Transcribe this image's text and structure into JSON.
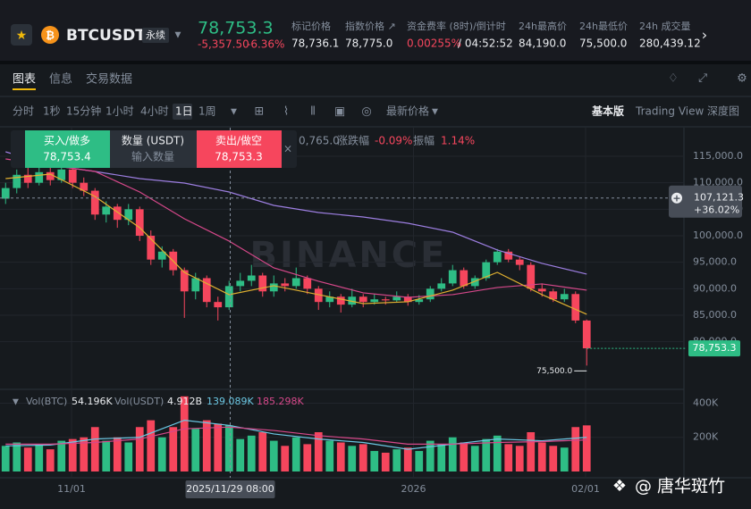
{
  "header": {
    "symbol": "BTCUSDT",
    "contract_type": "永续",
    "last_price": "78,753.3",
    "change": "-5,357.50",
    "change_pct": "-6.36%",
    "stats": [
      {
        "label": "标记价格",
        "value": "78,736.1"
      },
      {
        "label": "指数价格 ↗",
        "value": "78,775.0"
      },
      {
        "label": "资金费率 (8时)/倒计时",
        "value": "0.00255%",
        "value2": "/ 04:52:52"
      },
      {
        "label": "24h最高价",
        "value": "84,190.0"
      },
      {
        "label": "24h最低价",
        "value": "75,500.0"
      },
      {
        "label": "24h 成交量",
        "value": "280,439.12"
      }
    ]
  },
  "tabs": [
    "图表",
    "信息",
    "交易数据"
  ],
  "toolbar": {
    "intervals": [
      "分时",
      "1秒",
      "15分钟",
      "1小时",
      "4小时",
      "1日",
      "1周"
    ],
    "price_type": "最新价格",
    "views": [
      "基本版",
      "Trading View",
      "深度图"
    ]
  },
  "order_panel": {
    "buy_label": "买入/做多",
    "buy_price": "78,753.4",
    "qty_label": "数量 (USDT)",
    "qty_placeholder": "输入数量",
    "sell_label": "卖出/做空",
    "sell_price": "78,753.3"
  },
  "ohlc_row": {
    "fragment": "0,765.0",
    "change_label": "涨跌幅",
    "change": "-0.09%",
    "amplitude_label": "振幅",
    "amplitude": "1.14%"
  },
  "volume_row": {
    "vol_btc_label": "Vol(BTC)",
    "vol_btc": "54.196K",
    "vol_usdt_label": "Vol(USDT)",
    "vol_usdt": "4.912B",
    "ma1": "139.089K",
    "ma2": "185.298K"
  },
  "watermark": "BINANCE",
  "footer_watermark": "@ 唐华斑竹",
  "chart_data": {
    "type": "candlestick",
    "up_color": "#2ebd85",
    "down_color": "#f6465d",
    "candles": [
      [
        107000,
        110000,
        106000,
        109000
      ],
      [
        109000,
        112500,
        108000,
        111500
      ],
      [
        111500,
        113000,
        109000,
        110000
      ],
      [
        110000,
        113500,
        109500,
        112000
      ],
      [
        112000,
        113000,
        109500,
        110500
      ],
      [
        110500,
        113800,
        110000,
        112500
      ],
      [
        112500,
        113500,
        109000,
        110000
      ],
      [
        110000,
        111000,
        107500,
        108500
      ],
      [
        108500,
        109000,
        103000,
        104000
      ],
      [
        104000,
        106500,
        102500,
        105500
      ],
      [
        105500,
        106000,
        101500,
        103000
      ],
      [
        103000,
        106000,
        102000,
        105000
      ],
      [
        105000,
        105500,
        99000,
        100000
      ],
      [
        100000,
        101000,
        94500,
        95500
      ],
      [
        95500,
        98000,
        94000,
        97000
      ],
      [
        97000,
        97500,
        92500,
        93500
      ],
      [
        93500,
        94000,
        84500,
        89500
      ],
      [
        89500,
        93000,
        88000,
        92000
      ],
      [
        92000,
        92500,
        86500,
        87500
      ],
      [
        87500,
        88500,
        84000,
        86500
      ],
      [
        86500,
        91500,
        86000,
        90500
      ],
      [
        90500,
        93000,
        89500,
        91500
      ],
      [
        91500,
        94500,
        90500,
        92500
      ],
      [
        92500,
        93000,
        88500,
        89500
      ],
      [
        89500,
        92500,
        88500,
        91000
      ],
      [
        91000,
        92000,
        89500,
        90500
      ],
      [
        90500,
        94000,
        90000,
        92000
      ],
      [
        92000,
        92500,
        89000,
        90000
      ],
      [
        90000,
        90500,
        86000,
        87500
      ],
      [
        87500,
        89500,
        86500,
        88500
      ],
      [
        88500,
        89000,
        85500,
        87000
      ],
      [
        87000,
        90000,
        86500,
        88500
      ],
      [
        88500,
        89000,
        86500,
        87500
      ],
      [
        87500,
        89000,
        87000,
        88000
      ],
      [
        88000,
        88500,
        87000,
        87800
      ],
      [
        87800,
        89500,
        87500,
        88500
      ],
      [
        88500,
        89000,
        86800,
        87500
      ],
      [
        87500,
        88800,
        87000,
        88000
      ],
      [
        88000,
        90500,
        87500,
        90000
      ],
      [
        90000,
        92000,
        89500,
        91000
      ],
      [
        91000,
        94500,
        90500,
        93500
      ],
      [
        93500,
        94000,
        90000,
        90500
      ],
      [
        90500,
        92500,
        90000,
        92000
      ],
      [
        92000,
        95500,
        91500,
        95000
      ],
      [
        95000,
        97500,
        94500,
        97000
      ],
      [
        97000,
        97500,
        95000,
        95500
      ],
      [
        95500,
        96000,
        93500,
        94500
      ],
      [
        94500,
        95000,
        89500,
        90000
      ],
      [
        90000,
        91000,
        88500,
        89500
      ],
      [
        89500,
        90000,
        87500,
        88000
      ],
      [
        88000,
        90000,
        87500,
        89000
      ],
      [
        89000,
        89500,
        83500,
        84000
      ],
      [
        84000,
        84190,
        75500,
        78753.3
      ]
    ],
    "volumes": [
      150000,
      170000,
      140000,
      160000,
      130000,
      180000,
      190000,
      200000,
      260000,
      180000,
      200000,
      170000,
      260000,
      300000,
      200000,
      260000,
      440000,
      250000,
      300000,
      280000,
      270000,
      190000,
      210000,
      230000,
      180000,
      150000,
      200000,
      160000,
      230000,
      180000,
      170000,
      150000,
      160000,
      120000,
      110000,
      130000,
      140000,
      120000,
      180000,
      160000,
      200000,
      170000,
      150000,
      190000,
      210000,
      160000,
      150000,
      230000,
      170000,
      150000,
      140000,
      260000,
      270000
    ],
    "xlim": [
      -0.5,
      60.7
    ],
    "xticks": [
      {
        "value": 5.9,
        "label": "11/01"
      },
      {
        "value": 36.5,
        "label": "2026"
      },
      {
        "value": 51.9,
        "label": "02/01"
      }
    ],
    "ylim": [
      71180,
      120056
    ],
    "yticks": [
      {
        "value": 115000,
        "label": "115,000.0"
      },
      {
        "value": 110000,
        "label": "110,000.0"
      },
      {
        "value": 105000,
        "label": "105,000.0"
      },
      {
        "value": 100000,
        "label": "100,000.0"
      },
      {
        "value": 95000,
        "label": "95,000.0"
      },
      {
        "value": 90000,
        "label": "90,000.0"
      },
      {
        "value": 85000,
        "label": "85,000.0"
      },
      {
        "value": 80000,
        "label": "80,000.0"
      }
    ],
    "vol_ylim": [
      0,
      460000
    ],
    "vol_yticks": [
      {
        "value": 400000,
        "label": "400K"
      },
      {
        "value": 200000,
        "label": "200K"
      }
    ],
    "ma_lines": [
      {
        "color": "#9c7ee0",
        "x": [
          0,
          4,
          8,
          12,
          16,
          20,
          24,
          28,
          32,
          36,
          40,
          44,
          48,
          52
        ],
        "values": [
          115843,
          113315,
          112136,
          110787,
          109945,
          108260,
          105732,
          104384,
          103542,
          102362,
          100677,
          97307,
          94779,
          92757
        ]
      },
      {
        "color": "#d6488a",
        "x": [
          0,
          4,
          8,
          12,
          16,
          20,
          24,
          28,
          32,
          36,
          40,
          44,
          48,
          52
        ],
        "values": [
          114494,
          113315,
          112136,
          108260,
          103205,
          98992,
          93937,
          91410,
          89219,
          88377,
          88883,
          90231,
          90905,
          89725
        ]
      },
      {
        "color": "#e0b030",
        "x": [
          0,
          4,
          8,
          12,
          16,
          20,
          24,
          28,
          32,
          36,
          40,
          44,
          48,
          52
        ],
        "values": [
          110787,
          111630,
          107417,
          101519,
          93094,
          88882,
          90567,
          88882,
          87197,
          87534,
          89725,
          93094,
          88882,
          85175
        ]
      }
    ],
    "vol_ma_lines": [
      {
        "color": "#6bc7e3",
        "x": [
          0,
          4,
          8,
          12,
          16,
          20,
          24,
          28,
          32,
          36,
          40,
          44,
          48,
          52
        ],
        "values": [
          150000,
          155000,
          190000,
          200000,
          300000,
          270000,
          220000,
          190000,
          170000,
          130000,
          160000,
          190000,
          180000,
          200000
        ]
      },
      {
        "color": "#d6488a",
        "x": [
          0,
          4,
          8,
          12,
          16,
          20,
          24,
          28,
          32,
          36,
          40,
          44,
          48,
          52
        ],
        "values": [
          160000,
          160000,
          170000,
          190000,
          250000,
          260000,
          240000,
          210000,
          190000,
          160000,
          160000,
          170000,
          175000,
          185000
        ]
      }
    ],
    "crosshair": {
      "x": {
        "value": 20.1,
        "label": "2025/11/29 08:00"
      },
      "y": {
        "value": 107121.3,
        "label": "107,121.3"
      },
      "change": "+36.02%"
    },
    "last_price": {
      "value": 78753.3,
      "label": "78,753.3"
    },
    "low_label": {
      "value": 75500,
      "label": "75,500.0"
    }
  }
}
